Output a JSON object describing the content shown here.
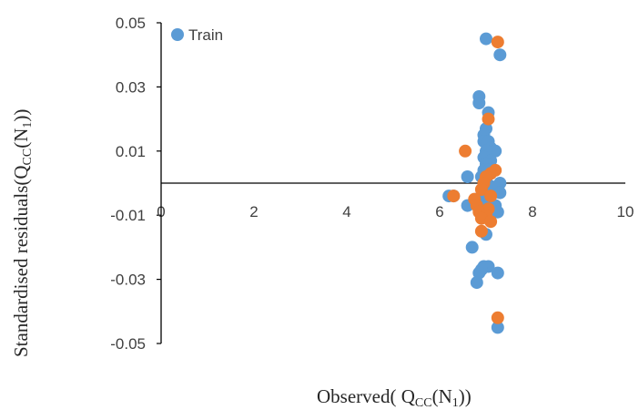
{
  "chart_data": {
    "type": "scatter",
    "xlabel_parts": [
      "Observed( Q",
      "CC",
      "(N",
      "1",
      "))"
    ],
    "ylabel_parts": [
      "Standardised residuals(Q",
      "CC",
      "(N",
      "1",
      "))"
    ],
    "xlim": [
      0,
      10
    ],
    "ylim": [
      -0.05,
      0.05
    ],
    "x_ticks": [
      "0",
      "2",
      "4",
      "6",
      "8",
      "10"
    ],
    "y_ticks": [
      "-0.05",
      "-0.03",
      "-0.01",
      "0.01",
      "0.03",
      "0.05"
    ],
    "grid": false,
    "legend": {
      "position": "top-left",
      "entries": [
        "Train"
      ]
    },
    "colors": {
      "train": "#5B9BD5",
      "test": "#ED7D31",
      "axis": "#000000"
    },
    "series": [
      {
        "name": "Train",
        "color": "#5B9BD5",
        "points": [
          [
            7.0,
            0.045
          ],
          [
            7.3,
            0.04
          ],
          [
            6.85,
            0.027
          ],
          [
            6.85,
            0.025
          ],
          [
            7.05,
            0.022
          ],
          [
            7.0,
            0.017
          ],
          [
            6.95,
            0.015
          ],
          [
            6.95,
            0.013
          ],
          [
            7.05,
            0.013
          ],
          [
            7.1,
            0.011
          ],
          [
            7.2,
            0.01
          ],
          [
            7.0,
            0.01
          ],
          [
            6.95,
            0.008
          ],
          [
            7.1,
            0.007
          ],
          [
            7.0,
            0.006
          ],
          [
            6.95,
            0.004
          ],
          [
            7.05,
            0.004
          ],
          [
            7.1,
            0.003
          ],
          [
            6.6,
            0.002
          ],
          [
            6.9,
            0.002
          ],
          [
            7.0,
            0.001
          ],
          [
            7.3,
            0.0
          ],
          [
            7.1,
            -0.001
          ],
          [
            6.95,
            -0.003
          ],
          [
            7.3,
            -0.003
          ],
          [
            6.3,
            -0.004
          ],
          [
            6.2,
            -0.004
          ],
          [
            6.8,
            -0.005
          ],
          [
            7.05,
            -0.006
          ],
          [
            6.6,
            -0.007
          ],
          [
            7.2,
            -0.007
          ],
          [
            6.85,
            -0.008
          ],
          [
            7.1,
            -0.008
          ],
          [
            7.25,
            -0.009
          ],
          [
            6.9,
            -0.01
          ],
          [
            7.05,
            -0.011
          ],
          [
            7.0,
            -0.016
          ],
          [
            6.7,
            -0.02
          ],
          [
            6.95,
            -0.026
          ],
          [
            7.05,
            -0.026
          ],
          [
            6.9,
            -0.027
          ],
          [
            6.85,
            -0.028
          ],
          [
            7.25,
            -0.028
          ],
          [
            6.8,
            -0.031
          ],
          [
            7.25,
            -0.045
          ]
        ]
      },
      {
        "name": "",
        "color": "#ED7D31",
        "points": [
          [
            7.25,
            0.044
          ],
          [
            7.05,
            0.02
          ],
          [
            6.55,
            0.01
          ],
          [
            7.2,
            0.004
          ],
          [
            7.1,
            0.003
          ],
          [
            7.0,
            0.002
          ],
          [
            6.95,
            0.0
          ],
          [
            6.9,
            -0.002
          ],
          [
            7.1,
            -0.004
          ],
          [
            6.3,
            -0.004
          ],
          [
            6.75,
            -0.005
          ],
          [
            6.8,
            -0.007
          ],
          [
            7.05,
            -0.008
          ],
          [
            6.85,
            -0.009
          ],
          [
            7.0,
            -0.01
          ],
          [
            6.9,
            -0.011
          ],
          [
            7.1,
            -0.012
          ],
          [
            6.9,
            -0.015
          ],
          [
            7.25,
            -0.042
          ]
        ]
      }
    ]
  }
}
